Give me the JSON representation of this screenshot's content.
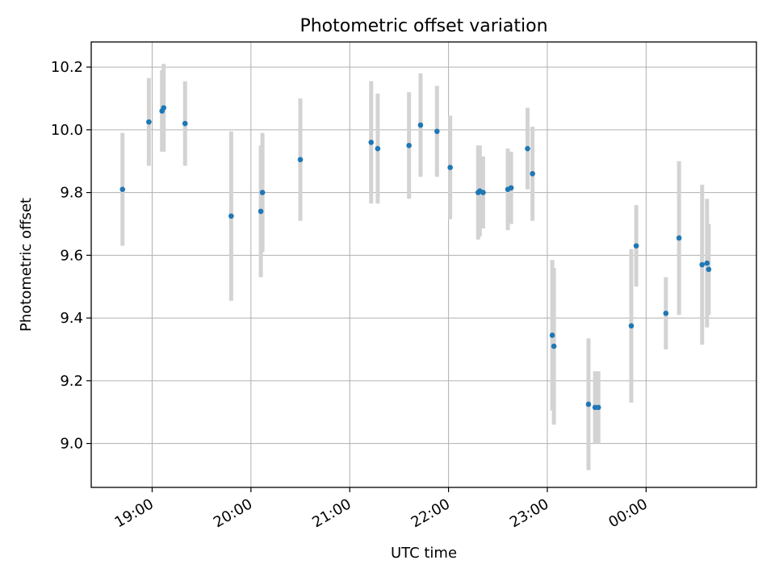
{
  "chart_data": {
    "type": "scatter",
    "title": "Photometric offset variation",
    "xlabel": "UTC time",
    "ylabel": "Photometric offset",
    "xlim": [
      "18:23",
      "01:07"
    ],
    "ylim": [
      8.86,
      10.28
    ],
    "x_ticks": [
      "19:00",
      "20:00",
      "21:00",
      "22:00",
      "23:00",
      "00:00"
    ],
    "y_ticks": [
      "9.0",
      "9.2",
      "9.4",
      "9.6",
      "9.8",
      "10.0",
      "10.2"
    ],
    "grid": true,
    "colors": {
      "point": "#1f77b4",
      "errorbar": "#d3d3d3",
      "grid": "#b0b0b0"
    },
    "points": [
      {
        "x": "18:42",
        "y": 9.81,
        "err": 0.18
      },
      {
        "x": "18:58",
        "y": 10.025,
        "err": 0.14
      },
      {
        "x": "19:06",
        "y": 10.06,
        "err": 0.13
      },
      {
        "x": "19:07",
        "y": 10.07,
        "err": 0.14
      },
      {
        "x": "19:20",
        "y": 10.02,
        "err": 0.135
      },
      {
        "x": "19:48",
        "y": 9.725,
        "err": 0.27
      },
      {
        "x": "20:06",
        "y": 9.74,
        "err": 0.21
      },
      {
        "x": "20:07",
        "y": 9.8,
        "err": 0.19
      },
      {
        "x": "20:30",
        "y": 9.905,
        "err": 0.195
      },
      {
        "x": "21:13",
        "y": 9.96,
        "err": 0.195
      },
      {
        "x": "21:17",
        "y": 9.94,
        "err": 0.175
      },
      {
        "x": "21:36",
        "y": 9.95,
        "err": 0.17
      },
      {
        "x": "21:43",
        "y": 10.015,
        "err": 0.165
      },
      {
        "x": "21:53",
        "y": 9.995,
        "err": 0.145
      },
      {
        "x": "22:01",
        "y": 9.88,
        "err": 0.165
      },
      {
        "x": "22:18",
        "y": 9.8,
        "err": 0.15
      },
      {
        "x": "22:19",
        "y": 9.805,
        "err": 0.145
      },
      {
        "x": "22:21",
        "y": 9.8,
        "err": 0.115
      },
      {
        "x": "22:36",
        "y": 9.81,
        "err": 0.13
      },
      {
        "x": "22:38",
        "y": 9.815,
        "err": 0.115
      },
      {
        "x": "22:48",
        "y": 9.94,
        "err": 0.13
      },
      {
        "x": "22:51",
        "y": 9.86,
        "err": 0.15
      },
      {
        "x": "23:03",
        "y": 9.345,
        "err": 0.24
      },
      {
        "x": "23:04",
        "y": 9.31,
        "err": 0.25
      },
      {
        "x": "23:25",
        "y": 9.125,
        "err": 0.21
      },
      {
        "x": "23:29",
        "y": 9.115,
        "err": 0.115
      },
      {
        "x": "23:31",
        "y": 9.115,
        "err": 0.115
      },
      {
        "x": "23:51",
        "y": 9.375,
        "err": 0.245
      },
      {
        "x": "23:54",
        "y": 9.63,
        "err": 0.13
      },
      {
        "x": "00:12",
        "y": 9.415,
        "err": 0.115
      },
      {
        "x": "00:20",
        "y": 9.655,
        "err": 0.245
      },
      {
        "x": "00:34",
        "y": 9.57,
        "err": 0.255
      },
      {
        "x": "00:37",
        "y": 9.575,
        "err": 0.205
      },
      {
        "x": "00:38",
        "y": 9.555,
        "err": 0.145
      }
    ]
  }
}
